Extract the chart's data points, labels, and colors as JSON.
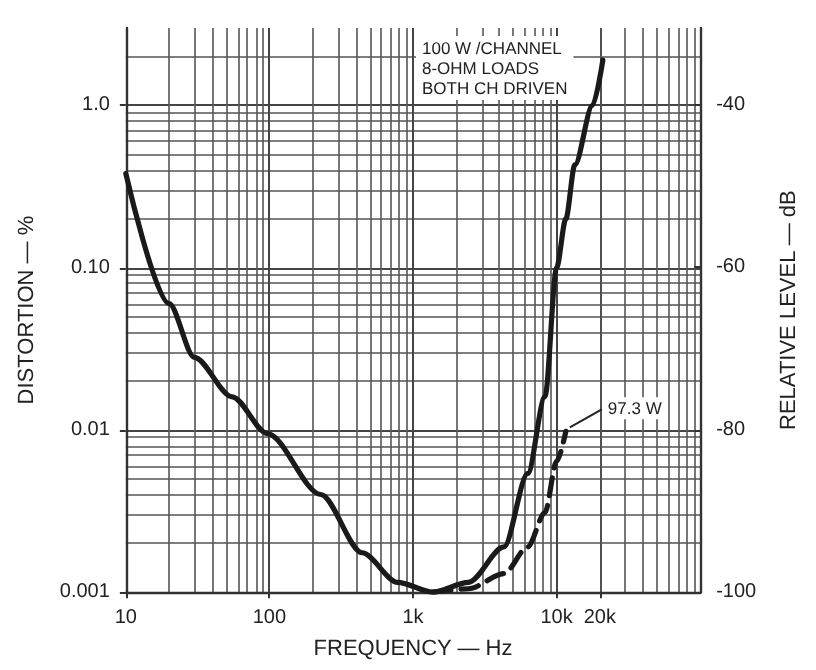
{
  "chart_data": {
    "type": "line",
    "xlabel": "FREQUENCY — Hz",
    "ylabel": "DISTORTION — %",
    "y2label": "RELATIVE LEVEL — dB",
    "log": "xy",
    "grid": true,
    "marker": "none",
    "xlim": [
      10,
      100000
    ],
    "xticks": [
      10,
      100,
      {
        "value": 1000,
        "label": "1k"
      },
      {
        "value": 10000,
        "label": "10k"
      },
      {
        "value": 20000,
        "label": "20k"
      }
    ],
    "ylim": [
      0.001,
      3
    ],
    "yticks": [
      0.001,
      0.01,
      {
        "value": 0.1,
        "label": "0.10"
      },
      {
        "value": 1,
        "label": "1.0"
      }
    ],
    "y2lim": [
      -100,
      -30.5
    ],
    "y2ticks": [
      -100,
      -80,
      -60,
      -40
    ],
    "series": [
      {
        "color": "#1a1a1a",
        "line_style": "solid",
        "x": [
          10,
          20,
          30,
          55,
          97,
          228,
          442,
          782,
          1380,
          2430,
          4300,
          6300,
          8300,
          10000,
          11600,
          13400,
          17800,
          21000
        ],
        "values": [
          0.38,
          0.06,
          0.028,
          0.016,
          0.0095,
          0.004,
          0.00175,
          0.00115,
          0.001,
          0.00115,
          0.0019,
          0.0054,
          0.016,
          0.1,
          0.2,
          0.43,
          1.0,
          1.9
        ]
      },
      {
        "color": "#1a1a1a",
        "line_style": "dashed",
        "x": [
          1380,
          2430,
          4300,
          6300,
          8300,
          10000,
          11600
        ],
        "values": [
          0.001,
          0.00105,
          0.0013,
          0.0019,
          0.0031,
          0.0064,
          0.0098
        ]
      }
    ],
    "annotations": [
      "100 W /CHANNEL\n8-OHM LOADS\nBOTH CH DRIVEN",
      {
        "text": "97.3 W",
        "x": 11600,
        "y": 0.0098
      }
    ]
  }
}
